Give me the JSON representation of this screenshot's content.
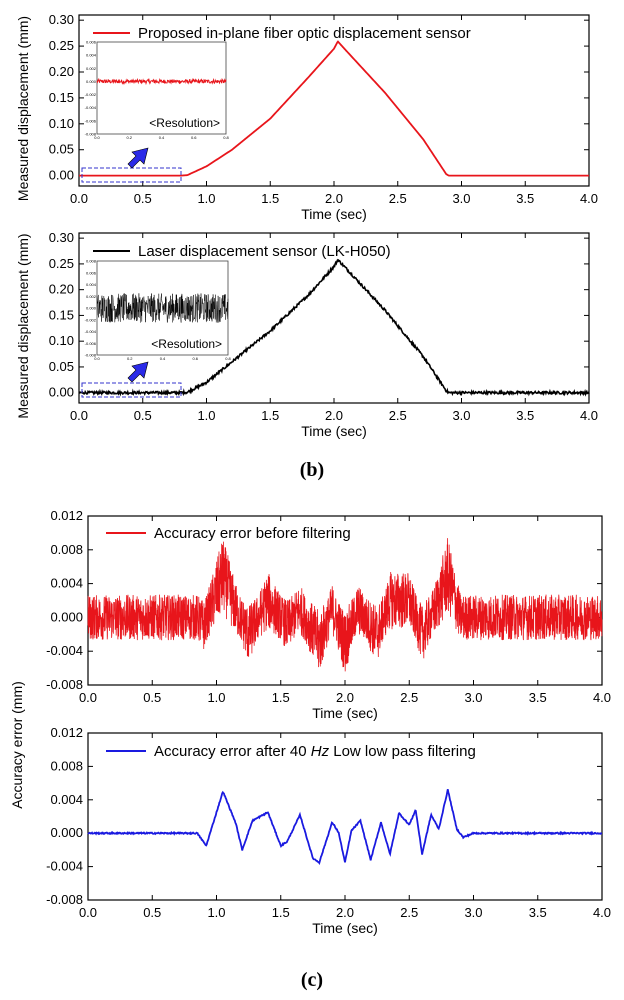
{
  "panel_labels": {
    "b": "(b)",
    "c": "(c)"
  },
  "colors": {
    "fiber": "#e8151b",
    "laser": "#000000",
    "before": "#e8151b",
    "after": "#1a1ae0",
    "dashbox": "#3333cc",
    "arrow": "#2a2ae8"
  },
  "chart_data": [
    {
      "id": "b1",
      "type": "line",
      "title": "",
      "legend": "Proposed in-plane fiber optic displacement sensor",
      "xlabel": "Time (sec)",
      "ylabel": "Measured displacement (mm)",
      "xlim": [
        0,
        4.0
      ],
      "ylim": [
        -0.02,
        0.31
      ],
      "xticks": [
        "0.0",
        "0.5",
        "1.0",
        "1.5",
        "2.0",
        "2.5",
        "3.0",
        "3.5",
        "4.0"
      ],
      "yticks": [
        "0.00",
        "0.05",
        "0.10",
        "0.15",
        "0.20",
        "0.25",
        "0.30"
      ],
      "series": [
        {
          "name": "Proposed in-plane fiber optic displacement sensor",
          "x": [
            0,
            0.8,
            0.85,
            1.0,
            1.2,
            1.5,
            1.8,
            2.0,
            2.03,
            2.1,
            2.4,
            2.7,
            2.88,
            2.9,
            4.0
          ],
          "values": [
            0,
            0,
            0.001,
            0.018,
            0.05,
            0.11,
            0.19,
            0.245,
            0.259,
            0.24,
            0.16,
            0.07,
            0.003,
            0,
            0
          ],
          "noise": 0.0
        }
      ],
      "inset": {
        "label": "<Resolution>",
        "xticks": [
          "0.0",
          "0.2",
          "0.4",
          "0.6",
          "0.8"
        ],
        "yticks": [
          "0.006",
          "0.004",
          "0.002",
          "0.000",
          "-0.002",
          "-0.004",
          "-0.006",
          "-0.008"
        ],
        "xlim": [
          0,
          0.8
        ],
        "ylim": [
          -0.008,
          0.006
        ],
        "level": 0.0,
        "noise": 0.0003
      }
    },
    {
      "id": "b2",
      "type": "line",
      "title": "",
      "legend": "Laser displacement sensor (LK-H050)",
      "xlabel": "Time (sec)",
      "ylabel": "Measured displacement (mm)",
      "xlim": [
        0,
        4.0
      ],
      "ylim": [
        -0.02,
        0.31
      ],
      "xticks": [
        "0.0",
        "0.5",
        "1.0",
        "1.5",
        "2.0",
        "2.5",
        "3.0",
        "3.5",
        "4.0"
      ],
      "yticks": [
        "0.00",
        "0.05",
        "0.10",
        "0.15",
        "0.20",
        "0.25",
        "0.30"
      ],
      "series": [
        {
          "name": "Laser displacement sensor (LK-H050)",
          "x": [
            0,
            0.8,
            0.85,
            1.0,
            1.2,
            1.5,
            1.8,
            2.0,
            2.03,
            2.1,
            2.4,
            2.7,
            2.88,
            2.9,
            4.0
          ],
          "values": [
            0,
            0,
            0.001,
            0.02,
            0.06,
            0.12,
            0.19,
            0.245,
            0.258,
            0.24,
            0.16,
            0.07,
            0.004,
            0,
            0
          ],
          "noise": 0.0025
        }
      ],
      "inset": {
        "label": "<Resolution>",
        "xticks": [
          "0.0",
          "0.2",
          "0.4",
          "0.6",
          "0.8"
        ],
        "yticks": [
          "0.008",
          "0.006",
          "0.004",
          "0.002",
          "0.000",
          "-0.002",
          "-0.004",
          "-0.006",
          "-0.008"
        ],
        "xlim": [
          0,
          0.8
        ],
        "ylim": [
          -0.008,
          0.008
        ],
        "level": 0.0,
        "noise": 0.0025
      }
    },
    {
      "id": "c1",
      "type": "line",
      "title": "",
      "legend": "Accuracy error before filtering",
      "xlabel": "Time (sec)",
      "ylabel": "Accuracy error (mm)",
      "xlim": [
        0,
        4.0
      ],
      "ylim": [
        -0.008,
        0.012
      ],
      "xticks": [
        "0.0",
        "0.5",
        "1.0",
        "1.5",
        "2.0",
        "2.5",
        "3.0",
        "3.5",
        "4.0"
      ],
      "yticks": [
        "-0.008",
        "-0.004",
        "0.000",
        "0.004",
        "0.008",
        "0.012"
      ],
      "series": [
        {
          "name": "Accuracy error before filtering",
          "x": [
            0,
            0.85,
            0.9,
            1.05,
            1.15,
            1.25,
            1.4,
            1.55,
            1.65,
            1.8,
            1.9,
            2.0,
            2.1,
            2.25,
            2.35,
            2.5,
            2.6,
            2.7,
            2.8,
            2.9,
            3.0,
            4.0
          ],
          "values": [
            0,
            0,
            -0.001,
            0.005,
            0.001,
            -0.002,
            0.002,
            -0.001,
            0.001,
            -0.003,
            0.001,
            -0.003,
            0.001,
            -0.002,
            0.002,
            0.002,
            -0.002,
            0.001,
            0.005,
            0.0,
            0,
            0
          ],
          "noise": 0.003
        }
      ]
    },
    {
      "id": "c2",
      "type": "line",
      "title": "",
      "legend_prefix": "Accuracy error after 40 ",
      "legend_unit": "Hz",
      "legend_suffix": " Low low pass filtering",
      "xlabel": "Time (sec)",
      "ylabel": "",
      "xlim": [
        0,
        4.0
      ],
      "ylim": [
        -0.008,
        0.012
      ],
      "xticks": [
        "0.0",
        "0.5",
        "1.0",
        "1.5",
        "2.0",
        "2.5",
        "3.0",
        "3.5",
        "4.0"
      ],
      "yticks": [
        "-0.008",
        "-0.004",
        "0.000",
        "0.004",
        "0.008",
        "0.012"
      ],
      "series": [
        {
          "name": "Accuracy error after 40 Hz Low low pass filtering",
          "x": [
            0,
            0.85,
            0.92,
            1.05,
            1.15,
            1.2,
            1.28,
            1.4,
            1.5,
            1.55,
            1.65,
            1.75,
            1.8,
            1.9,
            1.95,
            2.0,
            2.05,
            2.12,
            2.2,
            2.28,
            2.35,
            2.42,
            2.5,
            2.55,
            2.6,
            2.67,
            2.73,
            2.8,
            2.87,
            2.92,
            3.0,
            4.0
          ],
          "values": [
            0,
            0,
            -0.0015,
            0.005,
            0.0012,
            -0.002,
            0.0015,
            0.0025,
            -0.0015,
            -0.001,
            0.0022,
            -0.003,
            -0.0035,
            0.0013,
            0.0001,
            -0.0035,
            0.0003,
            0.0015,
            -0.0032,
            0.0013,
            -0.0025,
            0.0024,
            0.001,
            0.0028,
            -0.0025,
            0.0022,
            0.0005,
            0.0052,
            0.0005,
            -0.0005,
            0,
            0
          ],
          "noise": 8e-05
        }
      ]
    }
  ]
}
